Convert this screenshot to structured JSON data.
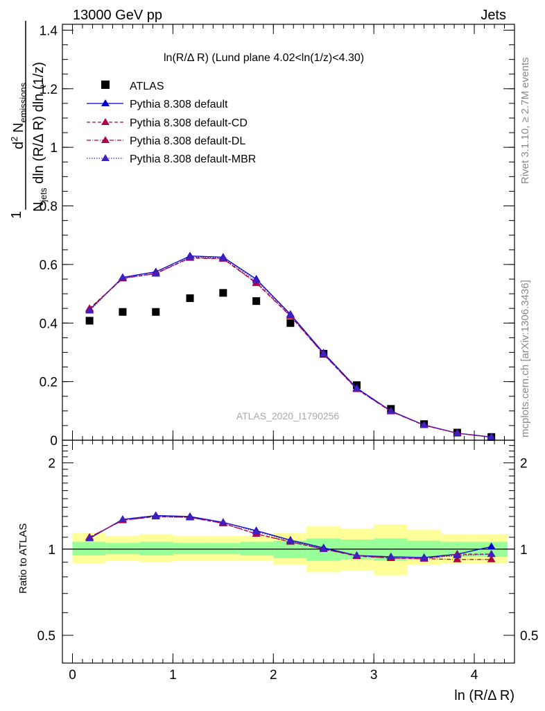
{
  "header": {
    "left": "13000 GeV pp",
    "right": "Jets"
  },
  "side_labels": {
    "rivet": "Rivet 3.1.10, ≥ 2.7M events",
    "mcplots": "mcplots.cern.ch [arXiv:1306.3436]"
  },
  "plot_title": "ln(R/Δ R) (Lund plane 4.02<ln(1/z)<4.30)",
  "watermark": "ATLAS_2020_I1790256",
  "ylabel_main": "1/N_jets d²N_emissions / dln(R/Δ R) dln(1/z)",
  "ylabel_ratio": "Ratio to ATLAS",
  "xlabel": "ln (R/Δ R)",
  "main_yticks": [
    "0",
    "0.2",
    "0.4",
    "0.6",
    "0.8",
    "1",
    "1.2",
    "1.4"
  ],
  "ratio_yticks": [
    "0.5",
    "1",
    "2"
  ],
  "xticks": [
    "0",
    "1",
    "2",
    "3",
    "4"
  ],
  "chart_data": {
    "type": "line",
    "x": [
      0.17,
      0.5,
      0.83,
      1.17,
      1.5,
      1.83,
      2.17,
      2.5,
      2.83,
      3.17,
      3.5,
      3.83,
      4.17
    ],
    "xlim": [
      -0.1,
      4.4
    ],
    "ylim_main": [
      0,
      1.42
    ],
    "ylim_ratio": [
      0.4,
      2.4
    ],
    "ratio_scale": "log",
    "series": [
      {
        "name": "ATLAS",
        "style": "marker",
        "color": "#000000",
        "values": [
          0.408,
          0.438,
          0.438,
          0.485,
          0.503,
          0.475,
          0.4,
          0.295,
          0.188,
          0.107,
          0.055,
          0.026,
          0.011
        ],
        "ratio": [
          1,
          1,
          1,
          1,
          1,
          1,
          1,
          1,
          1,
          1,
          1,
          1,
          1
        ]
      },
      {
        "name": "Pythia 8.308 default",
        "style": "solid",
        "color": "#0000cc",
        "values": [
          0.445,
          0.556,
          0.575,
          0.629,
          0.625,
          0.55,
          0.43,
          0.298,
          0.178,
          0.1,
          0.052,
          0.024,
          0.011
        ],
        "ratio": [
          1.09,
          1.27,
          1.31,
          1.3,
          1.24,
          1.16,
          1.075,
          1.01,
          0.95,
          0.94,
          0.935,
          0.96,
          1.02
        ]
      },
      {
        "name": "Pythia 8.308 default-CD",
        "style": "dashed",
        "color": "#b0004a",
        "values": [
          0.45,
          0.553,
          0.57,
          0.624,
          0.62,
          0.538,
          0.425,
          0.294,
          0.175,
          0.099,
          0.051,
          0.024,
          0.01
        ],
        "ratio": [
          1.1,
          1.26,
          1.3,
          1.29,
          1.23,
          1.13,
          1.06,
          1.0,
          0.95,
          0.93,
          0.925,
          0.96,
          0.96
        ]
      },
      {
        "name": "Pythia 8.308 default-DL",
        "style": "dashdot",
        "color": "#b0004a",
        "values": [
          0.448,
          0.552,
          0.569,
          0.622,
          0.619,
          0.536,
          0.424,
          0.293,
          0.174,
          0.098,
          0.051,
          0.024,
          0.01
        ],
        "ratio": [
          1.1,
          1.26,
          1.3,
          1.29,
          1.23,
          1.13,
          1.06,
          1.0,
          0.945,
          0.93,
          0.925,
          0.92,
          0.92
        ]
      },
      {
        "name": "Pythia 8.308 default-MBR",
        "style": "dotted",
        "color": "#4020c0",
        "values": [
          0.442,
          0.555,
          0.568,
          0.625,
          0.622,
          0.545,
          0.428,
          0.295,
          0.176,
          0.099,
          0.051,
          0.024,
          0.011
        ],
        "ratio": [
          1.09,
          1.27,
          1.3,
          1.29,
          1.24,
          1.15,
          1.07,
          1.0,
          0.95,
          0.94,
          0.93,
          0.95,
          0.96
        ]
      }
    ],
    "uncertainty_bands": {
      "inner_color": "#99ff99",
      "outer_color": "#ffff99",
      "x_edges": [
        0,
        0.33,
        0.67,
        1.0,
        1.33,
        1.67,
        2.0,
        2.33,
        2.67,
        3.0,
        3.33,
        3.67,
        4.0,
        4.33
      ],
      "inner_lo": [
        0.95,
        0.96,
        0.95,
        0.96,
        0.96,
        0.95,
        0.93,
        0.91,
        0.92,
        0.91,
        0.93,
        0.94,
        0.94
      ],
      "inner_hi": [
        1.06,
        1.05,
        1.06,
        1.05,
        1.05,
        1.06,
        1.07,
        1.09,
        1.08,
        1.09,
        1.07,
        1.06,
        1.06
      ],
      "outer_lo": [
        0.89,
        0.91,
        0.9,
        0.91,
        0.91,
        0.91,
        0.88,
        0.83,
        0.84,
        0.81,
        0.88,
        0.89,
        0.89
      ],
      "outer_hi": [
        1.14,
        1.11,
        1.13,
        1.11,
        1.11,
        1.11,
        1.14,
        1.2,
        1.18,
        1.22,
        1.17,
        1.13,
        1.13
      ]
    },
    "legend_position": "top-left",
    "grid": false
  }
}
